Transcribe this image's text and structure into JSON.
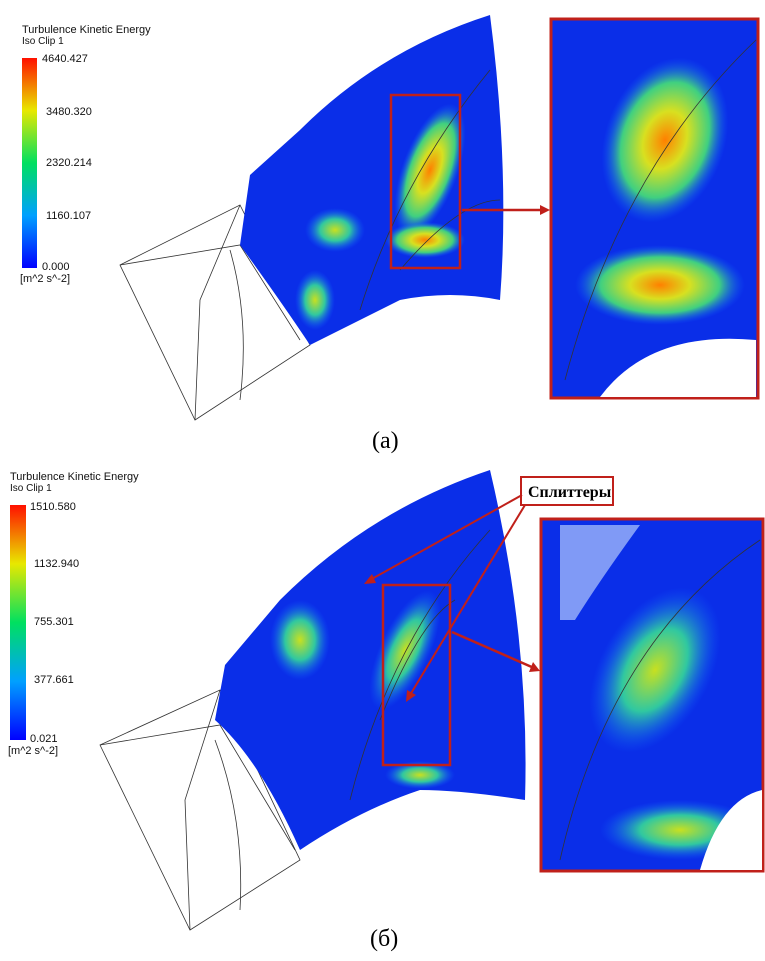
{
  "panels": [
    {
      "legend": {
        "title": "Turbulence Kinetic Energy",
        "subtitle": "Iso Clip 1",
        "ticks": [
          "4640.427",
          "3480.320",
          "2320.214",
          "1160.107",
          "0.000"
        ],
        "unit": "[m^2 s^-2]"
      },
      "caption": "(a)"
    },
    {
      "legend": {
        "title": "Turbulence Kinetic Energy",
        "subtitle": "Iso Clip 1",
        "ticks": [
          "1510.580",
          "1132.940",
          "755.301",
          "377.661",
          "0.021"
        ],
        "unit": "[m^2 s^-2]"
      },
      "annotation": "Сплиттеры",
      "caption": "(б)"
    }
  ]
}
